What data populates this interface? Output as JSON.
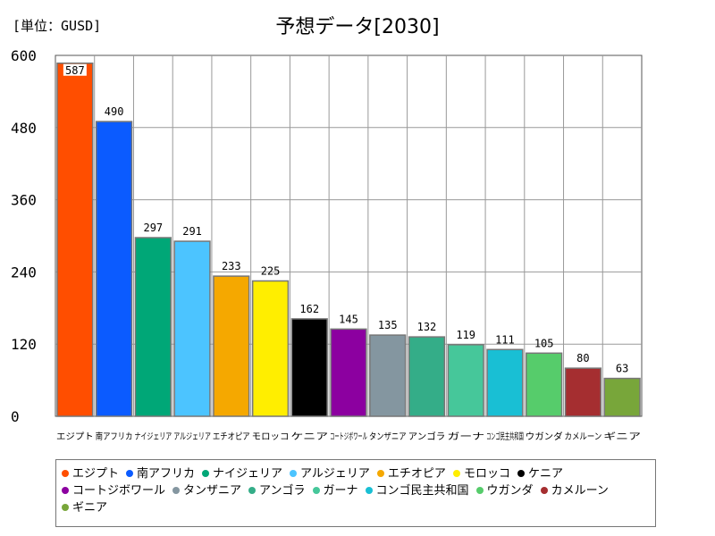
{
  "unit_label": "[単位：GUSD]",
  "chart_data": {
    "type": "bar",
    "title": "予想データ[2030]",
    "xlabel": "",
    "ylabel": "",
    "ylim": [
      0,
      600
    ],
    "yticks": [
      0,
      120,
      240,
      360,
      480,
      600
    ],
    "grid": true,
    "legend_position": "bottom",
    "categories": [
      "エジプト",
      "南アフリカ",
      "ナイジェリア",
      "アルジェリア",
      "エチオピア",
      "モロッコ",
      "ケニア",
      "コートジボワール",
      "タンザニア",
      "アンゴラ",
      "ガーナ",
      "コンゴ民主共和国",
      "ウガンダ",
      "カメルーン",
      "ギニア"
    ],
    "values": [
      587,
      490,
      297,
      291,
      233,
      225,
      162,
      145,
      135,
      132,
      119,
      111,
      105,
      80,
      63
    ],
    "colors": [
      "#ff4e00",
      "#0b5bff",
      "#00a777",
      "#4cc4ff",
      "#f5a800",
      "#ffee00",
      "#000000",
      "#8c00a0",
      "#8496a0",
      "#34ad88",
      "#46c79a",
      "#19bfd4",
      "#56cc6b",
      "#a52e30",
      "#78a63a"
    ]
  }
}
